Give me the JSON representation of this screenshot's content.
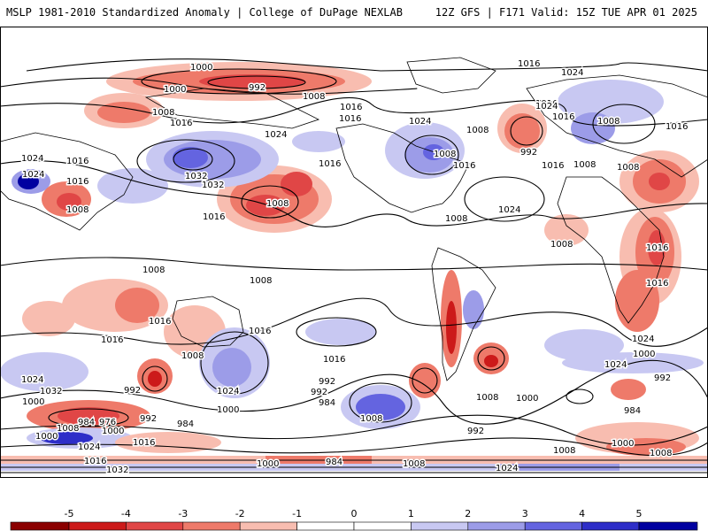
{
  "header": {
    "left_title": "MSLP 1981-2010 Standardized Anomaly | College of DuPage NEXLAB",
    "right_title": "12Z GFS | F171 Valid: 15Z TUE APR 01 2025"
  },
  "colorbar": {
    "ticks": [
      "-5",
      "-4",
      "-3",
      "-2",
      "-1",
      "0",
      "1",
      "2",
      "3",
      "4",
      "5"
    ],
    "colors": [
      "#8b0000",
      "#cc1a1a",
      "#e04646",
      "#ee7a6a",
      "#f8bdb0",
      "#ffffff",
      "#ffffff",
      "#c8c8f2",
      "#9c9ce8",
      "#6464e0",
      "#2e2ec8",
      "#0000a0"
    ]
  },
  "map": {
    "isobar_labels": [
      "1000",
      "992",
      "1000",
      "1008",
      "1016",
      "1024",
      "1016",
      "1016",
      "1024",
      "1008",
      "1016",
      "1024",
      "1016",
      "1008",
      "1032",
      "1032",
      "1016",
      "1008",
      "1016",
      "1024",
      "1016",
      "1016",
      "1024",
      "1008",
      "1008",
      "1016",
      "1024",
      "1008",
      "992",
      "1016",
      "1008",
      "1008",
      "1024",
      "1016",
      "1008",
      "1016",
      "1008",
      "1016",
      "1016",
      "1024",
      "1000",
      "992",
      "1024",
      "1008",
      "1016",
      "1016",
      "984",
      "992",
      "1000",
      "1016",
      "1008",
      "1008",
      "992",
      "992",
      "984",
      "1000",
      "1024",
      "992",
      "1000",
      "1008",
      "1008",
      "1016",
      "1024",
      "1032",
      "992",
      "984",
      "976",
      "1000",
      "1000",
      "1024",
      "984",
      "1008",
      "1016",
      "1000",
      "1008",
      "1032",
      "1000",
      "1008",
      "1024",
      "1016",
      "984",
      "1008"
    ]
  }
}
